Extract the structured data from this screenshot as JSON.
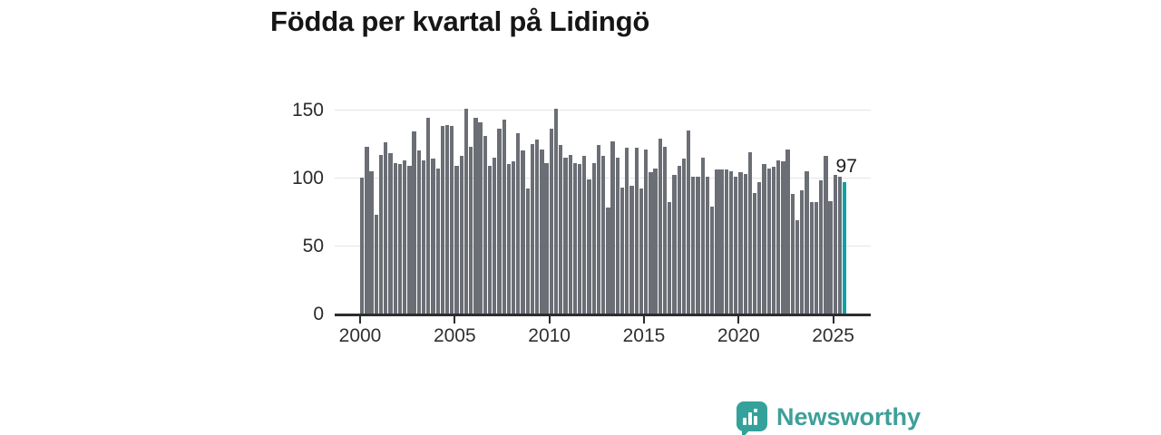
{
  "title": "Födda per kvartal på Lidingö",
  "annotation_label": "97",
  "logo": {
    "text": "Newsworthy",
    "color": "#3f9f99"
  },
  "chart_data": {
    "type": "bar",
    "title": "Födda per kvartal på Lidingö",
    "x_unit": "quarter",
    "x_start": "2000-Q1",
    "x_end": "2025-Q3",
    "x_tick_labels": [
      "2000",
      "2005",
      "2010",
      "2015",
      "2020",
      "2025"
    ],
    "y_tick_labels": [
      "0",
      "50",
      "100",
      "150"
    ],
    "y_ticks": [
      0,
      50,
      100,
      150
    ],
    "ylim": [
      0,
      155
    ],
    "grid": true,
    "legend": false,
    "bar_color": "#6b6e75",
    "highlight_color": "#0da3a4",
    "highlight_index": 102,
    "highlight_label": "97",
    "series": [
      {
        "name": "Födda",
        "values": [
          100,
          123,
          105,
          73,
          117,
          126,
          118,
          111,
          110,
          113,
          109,
          134,
          120,
          113,
          144,
          114,
          107,
          138,
          139,
          138,
          109,
          116,
          151,
          123,
          144,
          141,
          131,
          109,
          115,
          136,
          143,
          110,
          112,
          133,
          120,
          92,
          125,
          128,
          121,
          111,
          136,
          151,
          124,
          115,
          117,
          111,
          110,
          116,
          99,
          111,
          124,
          116,
          78,
          127,
          115,
          93,
          122,
          94,
          122,
          92,
          121,
          104,
          107,
          129,
          123,
          82,
          102,
          109,
          114,
          135,
          101,
          101,
          115,
          101,
          79,
          106,
          106,
          106,
          105,
          101,
          104,
          103,
          119,
          89,
          97,
          110,
          107,
          108,
          113,
          112,
          121,
          88,
          69,
          91,
          105,
          82,
          82,
          98,
          116,
          83,
          102,
          101,
          97
        ]
      }
    ]
  }
}
